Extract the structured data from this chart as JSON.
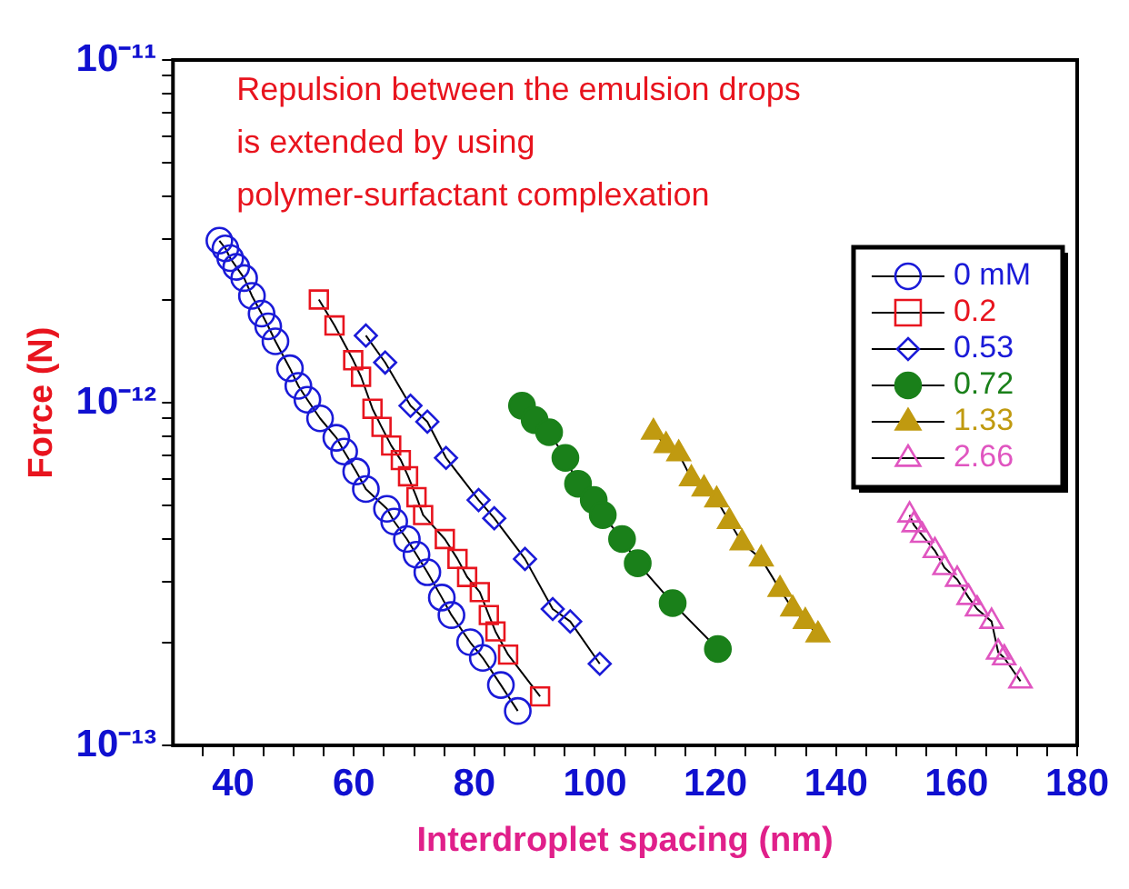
{
  "chart_data": {
    "type": "line",
    "xlabel": "Interdroplet spacing (nm)",
    "ylabel": "Force (N)",
    "annotations": [
      "Repulsion between the emulsion drops\nis extended by using\npolymer-surfactant complexation"
    ],
    "xlim": [
      30,
      180
    ],
    "xticks": [
      {
        "value": 35,
        "label": null
      },
      40,
      {
        "value": 45,
        "label": null
      },
      {
        "value": 50,
        "label": null
      },
      {
        "value": 55,
        "label": null
      },
      60,
      {
        "value": 65,
        "label": null
      },
      {
        "value": 70,
        "label": null
      },
      {
        "value": 75,
        "label": null
      },
      80,
      {
        "value": 85,
        "label": null
      },
      {
        "value": 90,
        "label": null
      },
      {
        "value": 95,
        "label": null
      },
      100,
      {
        "value": 105,
        "label": null
      },
      {
        "value": 110,
        "label": null
      },
      {
        "value": 115,
        "label": null
      },
      120,
      {
        "value": 125,
        "label": null
      },
      {
        "value": 130,
        "label": null
      },
      {
        "value": 135,
        "label": null
      },
      140,
      {
        "value": 145,
        "label": null
      },
      {
        "value": 150,
        "label": null
      },
      {
        "value": 155,
        "label": null
      },
      160,
      {
        "value": 165,
        "label": null
      },
      {
        "value": 170,
        "label": null
      },
      {
        "value": 175,
        "label": null
      },
      180
    ],
    "ylim": [
      1e-13,
      1e-11
    ],
    "log": "y",
    "yticks": [
      {
        "value": 1e-13,
        "label": "10⁻¹³"
      },
      {
        "value": 2e-13,
        "label": null
      },
      {
        "value": 3e-13,
        "label": null
      },
      {
        "value": 4e-13,
        "label": null
      },
      {
        "value": 5e-13,
        "label": null
      },
      {
        "value": 6e-13,
        "label": null
      },
      {
        "value": 7e-13,
        "label": null
      },
      {
        "value": 8e-13,
        "label": null
      },
      {
        "value": 9e-13,
        "label": null
      },
      {
        "value": 1e-12,
        "label": "10⁻¹²"
      },
      {
        "value": 2e-12,
        "label": null
      },
      {
        "value": 3e-12,
        "label": null
      },
      {
        "value": 4e-12,
        "label": null
      },
      {
        "value": 5e-12,
        "label": null
      },
      {
        "value": 6e-12,
        "label": null
      },
      {
        "value": 7e-12,
        "label": null
      },
      {
        "value": 8e-12,
        "label": null
      },
      {
        "value": 9e-12,
        "label": null
      },
      {
        "value": 1e-11,
        "label": "10⁻¹¹"
      }
    ],
    "grid": false,
    "legend": "top right",
    "line_style": "solid",
    "series": [
      {
        "name": "0 mM",
        "color": "#1a1ad8",
        "marker": "circle",
        "x": [
          37.7,
          38.7,
          39.5,
          40.5,
          41.8,
          43.1,
          44.7,
          45.8,
          47.0,
          49.4,
          50.8,
          52.3,
          54.4,
          57.1,
          58.4,
          60.4,
          62.0,
          65.5,
          66.7,
          68.8,
          70.4,
          72.2,
          74.6,
          76.2,
          79.3,
          81.4,
          84.4,
          87.2
        ],
        "values": [
          2.97e-12,
          2.82e-12,
          2.64e-12,
          2.49e-12,
          2.31e-12,
          2.05e-12,
          1.82e-12,
          1.67e-12,
          1.51e-12,
          1.26e-12,
          1.12e-12,
          1.02e-12,
          9e-13,
          7.9e-13,
          7.2e-13,
          6.3e-13,
          5.6e-13,
          4.9e-13,
          4.5e-13,
          4e-13,
          3.6e-13,
          3.2e-13,
          2.7e-13,
          2.4e-13,
          2e-13,
          1.8e-13,
          1.5e-13,
          1.26e-13
        ]
      },
      {
        "name": "0.2",
        "color": "#e8141e",
        "marker": "square",
        "x": [
          54.2,
          56.8,
          59.9,
          61.2,
          63.1,
          64.6,
          66.2,
          67.8,
          69.0,
          70.4,
          71.5,
          75.1,
          77.2,
          78.8,
          80.9,
          82.4,
          83.5,
          85.6,
          90.9
        ],
        "values": [
          2e-12,
          1.68e-12,
          1.33e-12,
          1.19e-12,
          9.6e-13,
          8.5e-13,
          7.5e-13,
          6.8e-13,
          6.1e-13,
          5.3e-13,
          4.7e-13,
          4e-13,
          3.5e-13,
          3.1e-13,
          2.8e-13,
          2.4e-13,
          2.15e-13,
          1.84e-13,
          1.39e-13
        ]
      },
      {
        "name": "0.53",
        "color": "#1a1ad8",
        "marker": "diamond",
        "x": [
          62.0,
          65.2,
          69.4,
          72.2,
          75.3,
          80.7,
          83.3,
          88.4,
          93.0,
          95.9,
          100.8
        ],
        "values": [
          1.57e-12,
          1.31e-12,
          9.8e-13,
          8.8e-13,
          6.9e-13,
          5.2e-13,
          4.6e-13,
          3.5e-13,
          2.5e-13,
          2.3e-13,
          1.73e-13
        ]
      },
      {
        "name": "0.72",
        "color": "#1a801a",
        "marker": "circle-filled",
        "x": [
          87.9,
          90.0,
          92.4,
          95.1,
          97.2,
          99.8,
          101.3,
          104.5,
          107.1,
          112.9,
          120.4
        ],
        "values": [
          9.8e-13,
          8.9e-13,
          8.2e-13,
          6.9e-13,
          5.8e-13,
          5.2e-13,
          4.7e-13,
          4e-13,
          3.4e-13,
          2.6e-13,
          1.91e-13
        ]
      },
      {
        "name": "1.33",
        "color": "#c09a10",
        "marker": "triangle-filled",
        "x": [
          109.7,
          111.8,
          113.9,
          116.0,
          118.1,
          120.2,
          122.3,
          124.4,
          127.6,
          130.7,
          132.8,
          134.9,
          137.0
        ],
        "values": [
          8.2e-13,
          7.5e-13,
          7.1e-13,
          6e-13,
          5.6e-13,
          5.2e-13,
          4.5e-13,
          3.9e-13,
          3.5e-13,
          2.85e-13,
          2.5e-13,
          2.3e-13,
          2.1e-13
        ]
      },
      {
        "name": "2.66",
        "color": "#e055c0",
        "marker": "triangle",
        "x": [
          152.2,
          152.9,
          154.3,
          156.4,
          158.0,
          160.1,
          162.0,
          163.4,
          165.8,
          166.9,
          167.9,
          170.6
        ],
        "values": [
          4.7e-13,
          4.4e-13,
          4.1e-13,
          3.7e-13,
          3.3e-13,
          3.05e-13,
          2.7e-13,
          2.5e-13,
          2.3e-13,
          1.87e-13,
          1.8e-13,
          1.54e-13
        ]
      }
    ]
  }
}
